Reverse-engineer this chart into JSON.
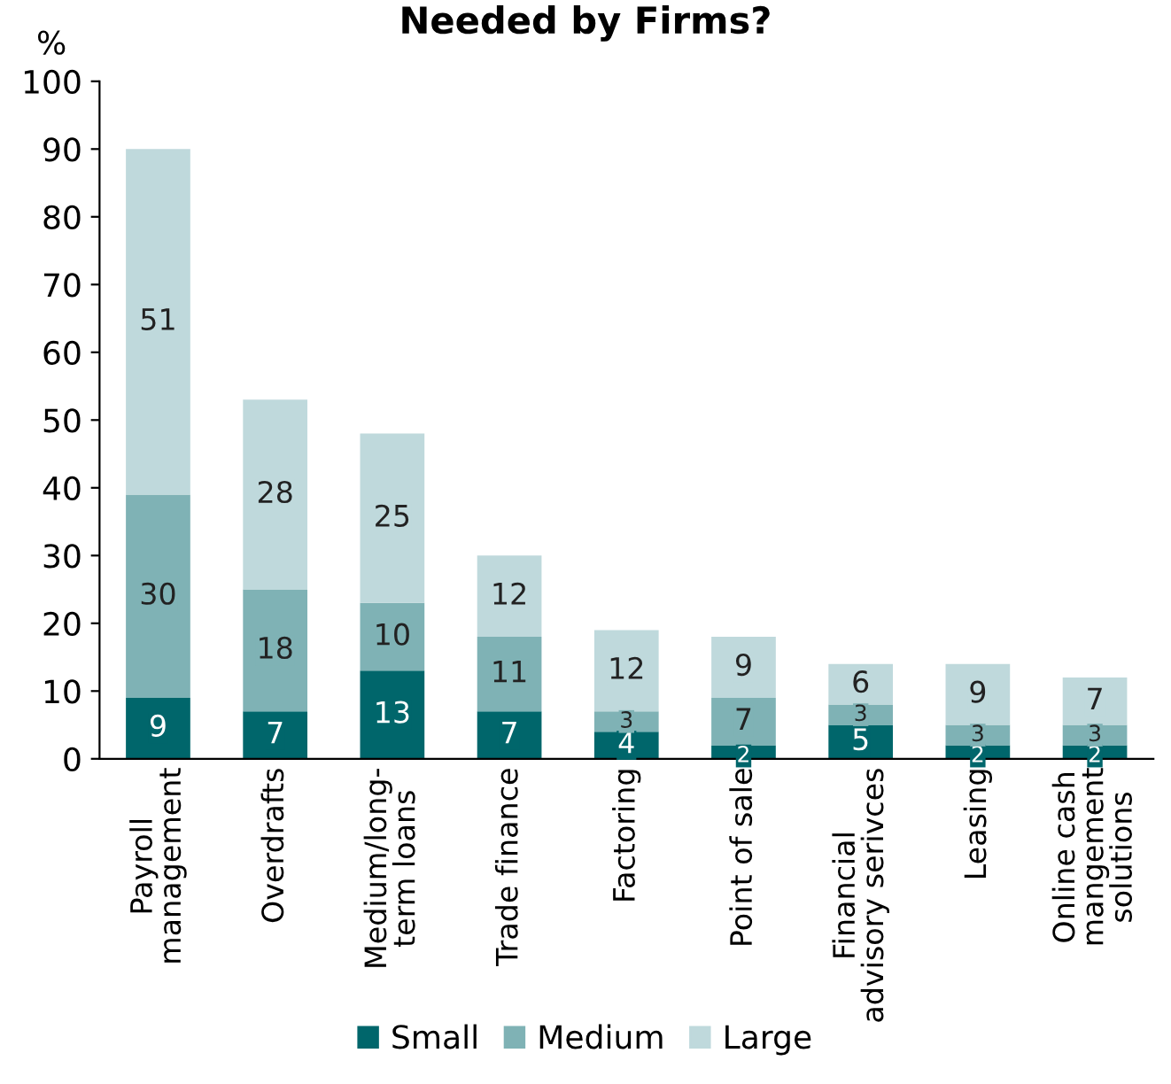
{
  "chart_data": {
    "type": "bar",
    "title": "Needed by Firms?",
    "ylabel": "%",
    "stacked": true,
    "categories": [
      "Payroll\nmanagement",
      "Overdrafts",
      "Medium/long-\nterm loans",
      "Trade finance",
      "Factoring",
      "Point of sale",
      "Financial\nadvisory serivces",
      "Leasing",
      "Online cash\nmangement\nsolutions"
    ],
    "series": [
      {
        "name": "Small",
        "color": "#00666b",
        "values": [
          9,
          7,
          13,
          7,
          4,
          2,
          5,
          2,
          2
        ]
      },
      {
        "name": "Medium",
        "color": "#7fb2b5",
        "values": [
          30,
          18,
          10,
          11,
          3,
          7,
          3,
          3,
          3
        ]
      },
      {
        "name": "Large",
        "color": "#bfd9dc",
        "values": [
          51,
          28,
          25,
          12,
          12,
          9,
          6,
          9,
          7
        ]
      }
    ],
    "data_labels": true,
    "ylim": [
      0,
      100
    ],
    "yticks": [
      0,
      10,
      20,
      30,
      40,
      50,
      60,
      70,
      80,
      90,
      100
    ],
    "grid": false,
    "legend": "bottom"
  }
}
